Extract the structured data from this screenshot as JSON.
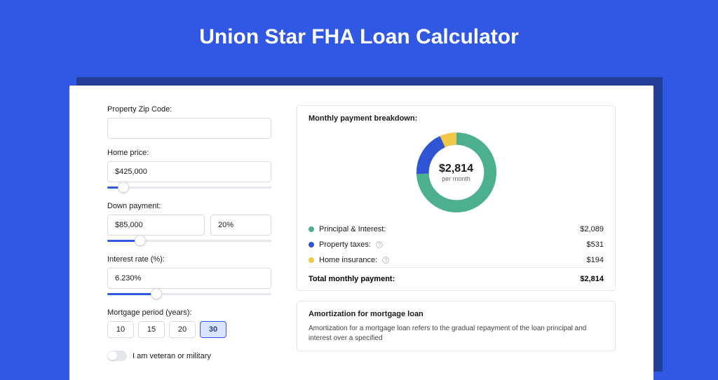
{
  "title": "Union Star FHA Loan Calculator",
  "colors": {
    "page_bg": "#3158e2",
    "card_shadow": "#243d97",
    "accent": "#3158e2",
    "border": "#d8dbe0"
  },
  "form": {
    "zip": {
      "label": "Property Zip Code:",
      "value": ""
    },
    "price": {
      "label": "Home price:",
      "value": "$425,000",
      "slider_pct": 10
    },
    "down": {
      "label": "Down payment:",
      "value": "$85,000",
      "pct": "20%",
      "slider_pct": 20
    },
    "rate": {
      "label": "Interest rate (%):",
      "value": "6.230%",
      "slider_pct": 30
    },
    "period": {
      "label": "Mortgage period (years):",
      "options": [
        "10",
        "15",
        "20",
        "30"
      ],
      "selected": "30"
    },
    "veteran": {
      "label": "I am veteran or military",
      "on": false
    }
  },
  "breakdown": {
    "title": "Monthly payment breakdown:",
    "donut": {
      "center_amount": "$2,814",
      "center_label": "per month",
      "segments": [
        {
          "key": "pi",
          "value": 2089,
          "color": "#4caf8e"
        },
        {
          "key": "tax",
          "value": 531,
          "color": "#2f55d4"
        },
        {
          "key": "ins",
          "value": 194,
          "color": "#f2c84b"
        }
      ],
      "track_color": "#eef0f4",
      "stroke_width": 18
    },
    "items": [
      {
        "label": "Principal & Interest:",
        "value": "$2,089",
        "dot": "#4caf8e",
        "info": false
      },
      {
        "label": "Property taxes:",
        "value": "$531",
        "dot": "#2f55d4",
        "info": true
      },
      {
        "label": "Home insurance:",
        "value": "$194",
        "dot": "#f2c84b",
        "info": true
      }
    ],
    "total": {
      "label": "Total monthly payment:",
      "value": "$2,814"
    }
  },
  "amortization": {
    "title": "Amortization for mortgage loan",
    "body": "Amortization for a mortgage loan refers to the gradual repayment of the loan principal and interest over a specified"
  }
}
